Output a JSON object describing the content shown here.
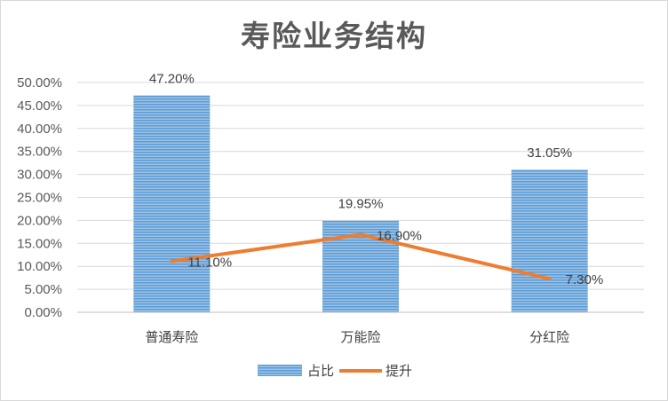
{
  "chart_data": {
    "type": "bar",
    "title": "寿险业务结构",
    "categories": [
      "普通寿险",
      "万能险",
      "分红险"
    ],
    "ylim": [
      0,
      50
    ],
    "y_ticks": [
      "0.00%",
      "5.00%",
      "10.00%",
      "15.00%",
      "20.00%",
      "25.00%",
      "30.00%",
      "35.00%",
      "40.00%",
      "45.00%",
      "50.00%"
    ],
    "grid": true,
    "legend_position": "bottom",
    "series": [
      {
        "name": "占比",
        "kind": "bar",
        "color": "#5b9bd5",
        "values": [
          47.2,
          19.95,
          31.05
        ],
        "labels": [
          "47.20%",
          "19.95%",
          "31.05%"
        ]
      },
      {
        "name": "提升",
        "kind": "line",
        "color": "#ed7d31",
        "values": [
          11.1,
          16.9,
          7.3
        ],
        "labels": [
          "11.10%",
          "16.90%",
          "7.30%"
        ]
      }
    ]
  }
}
